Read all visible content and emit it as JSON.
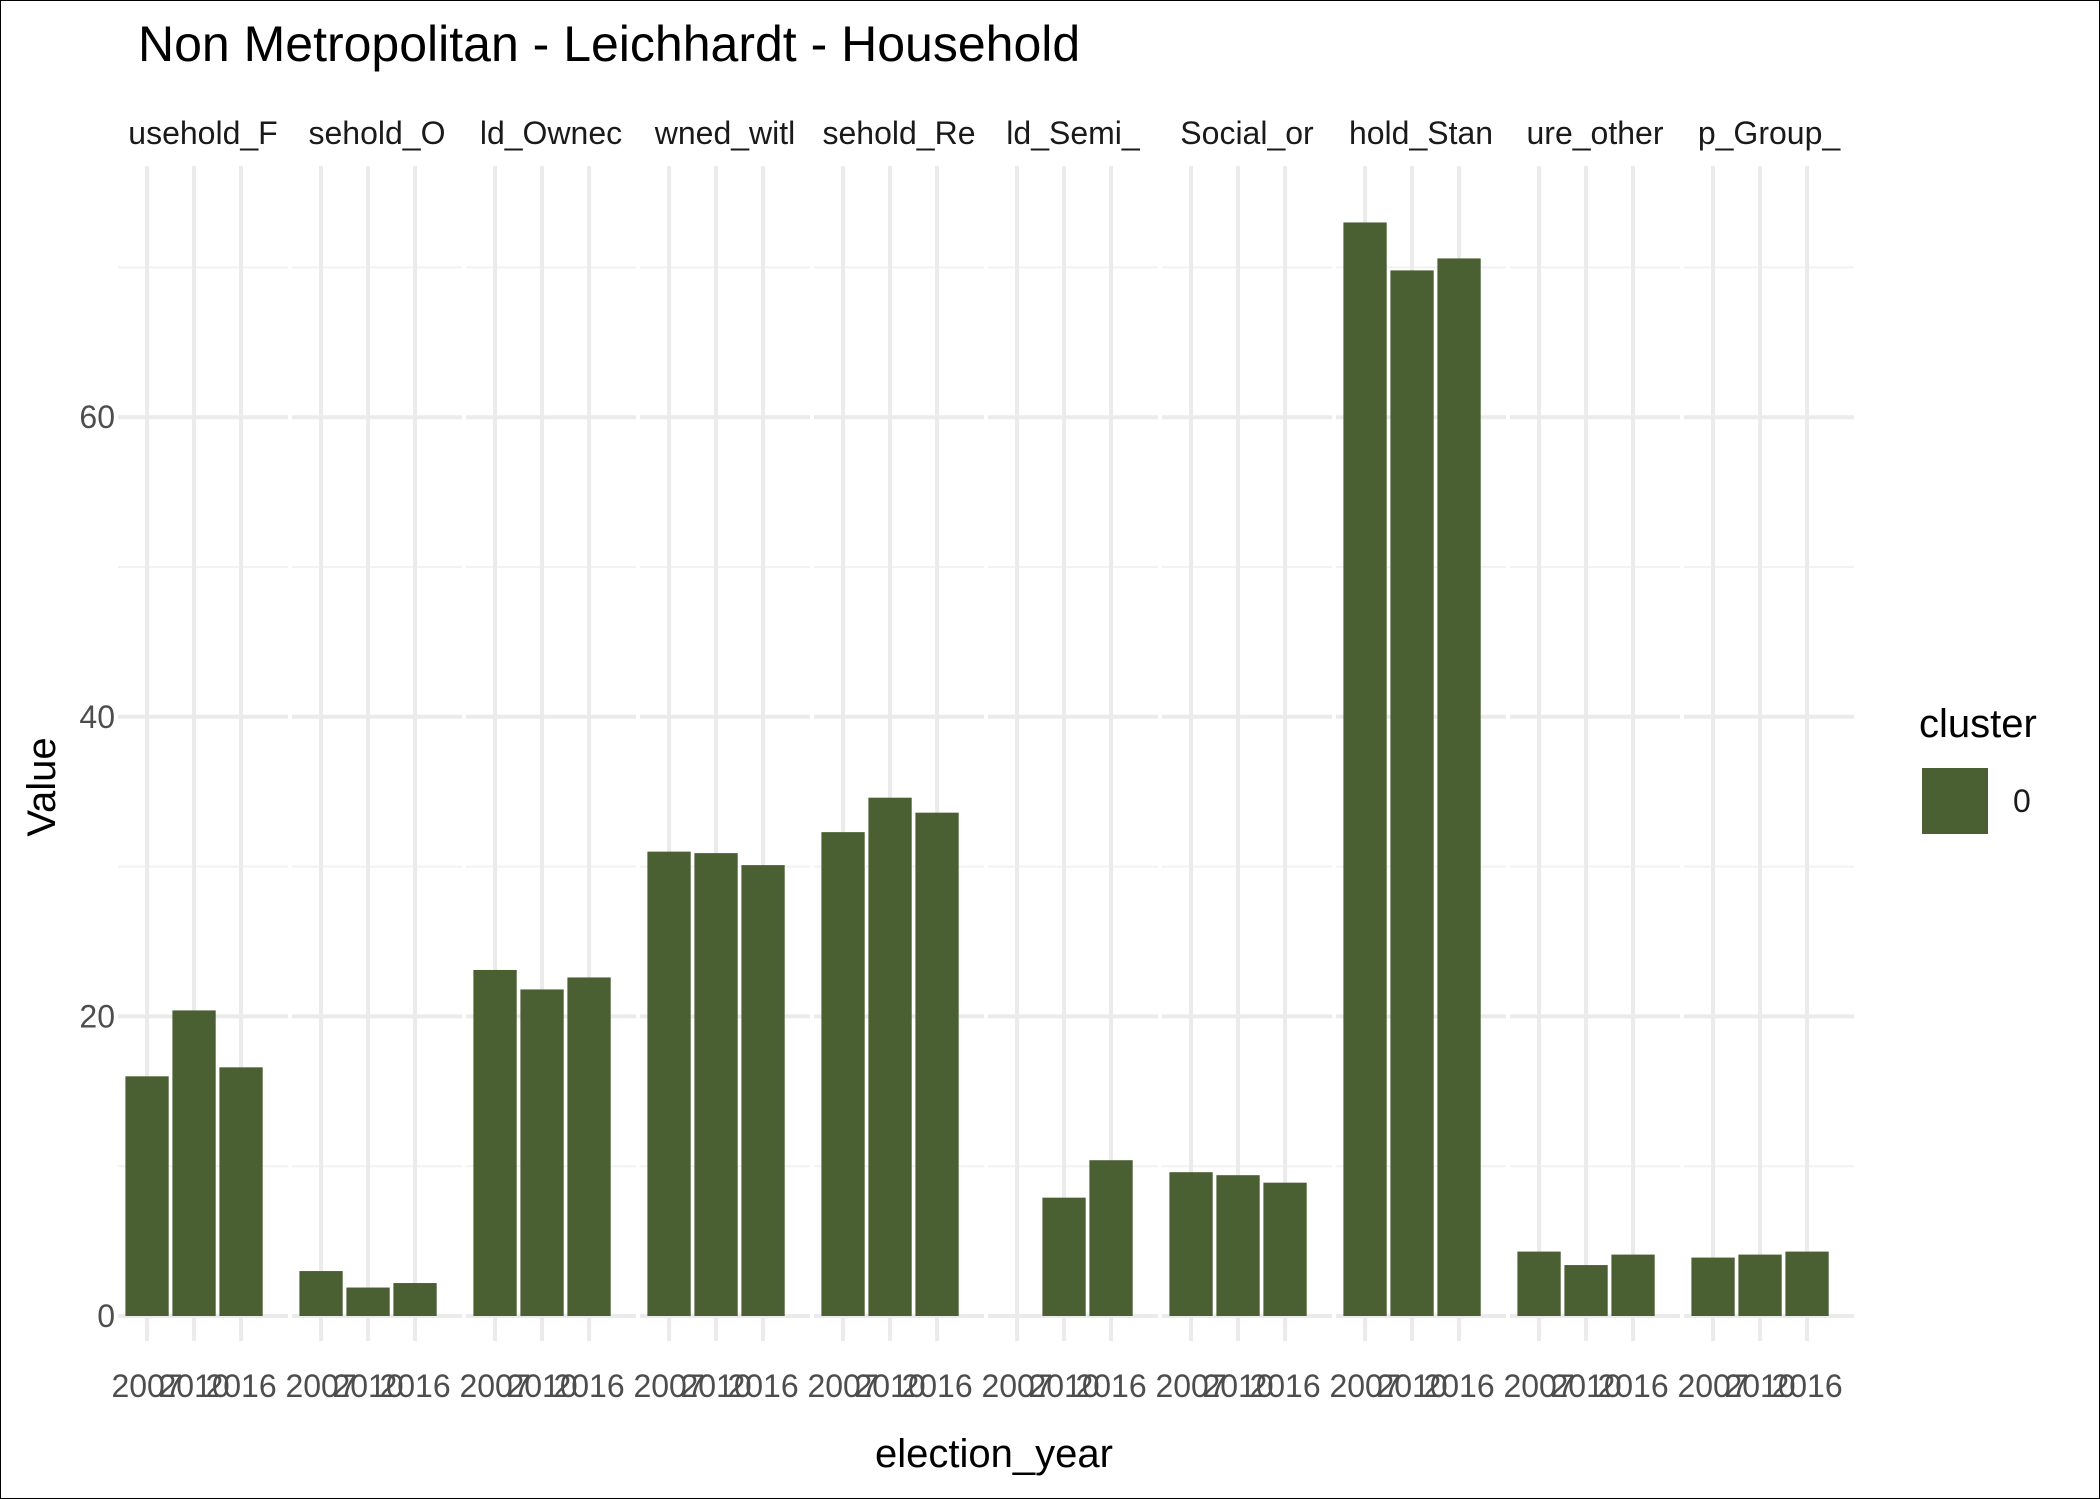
{
  "chart_data": {
    "type": "bar",
    "title": "Non Metropolitan - Leichhardt - Household",
    "xlabel": "election_year",
    "ylabel": "Value",
    "ylim": [
      0,
      76
    ],
    "y_ticks": [
      0,
      20,
      40,
      60
    ],
    "grid": true,
    "legend": {
      "title": "cluster",
      "placement": "right",
      "entries": [
        {
          "label": "0",
          "color": "#4a5f32"
        }
      ]
    },
    "categories": [
      "2007",
      "2010",
      "2016"
    ],
    "facets": [
      {
        "label": "usehold_F",
        "values": [
          16.0,
          20.4,
          16.6
        ]
      },
      {
        "label": "sehold_O",
        "values": [
          3.0,
          1.9,
          2.2
        ]
      },
      {
        "label": "ld_Ownec",
        "values": [
          23.1,
          21.8,
          22.6
        ]
      },
      {
        "label": "wned_witl",
        "values": [
          31.0,
          30.9,
          30.1
        ]
      },
      {
        "label": "sehold_Re",
        "values": [
          32.3,
          34.6,
          33.6
        ]
      },
      {
        "label": "ld_Semi_",
        "values": [
          null,
          7.9,
          10.4
        ]
      },
      {
        "label": "Social_or",
        "values": [
          9.6,
          9.4,
          8.9
        ]
      },
      {
        "label": "hold_Stan",
        "values": [
          73.0,
          69.8,
          70.6
        ]
      },
      {
        "label": "ure_other",
        "values": [
          4.3,
          3.4,
          4.1
        ]
      },
      {
        "label": "p_Group_",
        "values": [
          3.9,
          4.1,
          4.3
        ]
      }
    ],
    "bar_color": "#4a5f32"
  }
}
